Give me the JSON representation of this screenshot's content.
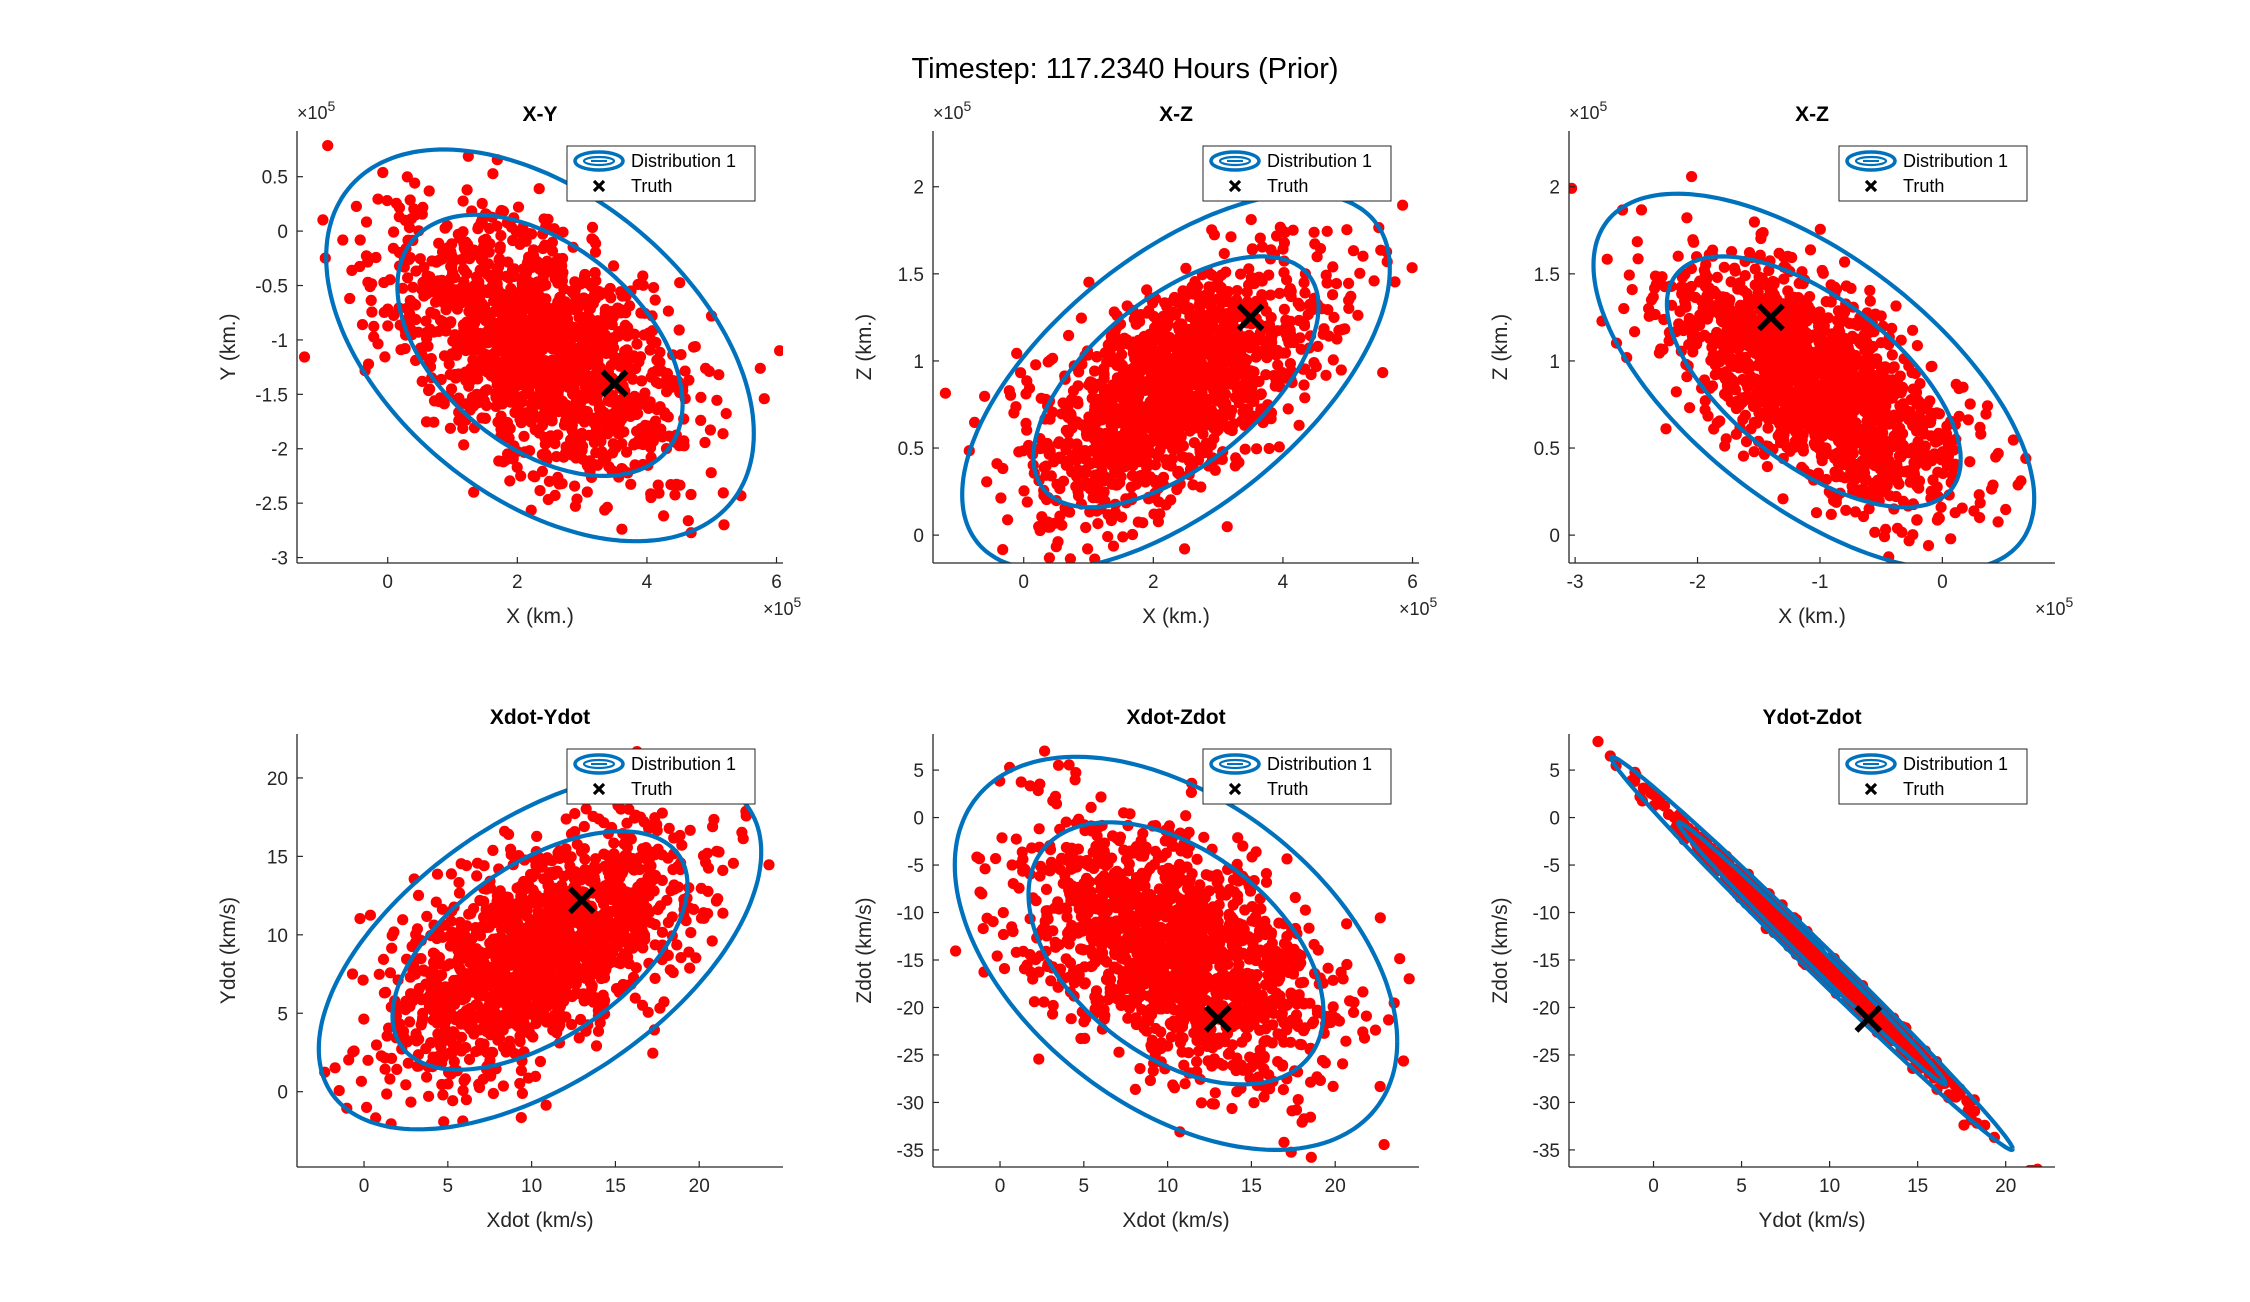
{
  "figure": {
    "title": "Timestep: 117.2340 Hours (Prior)"
  },
  "colors": {
    "ellipse": "#0072BD",
    "samples": "#FF0000",
    "truth": "#000000",
    "axes": "#262626"
  },
  "chart_data": [
    {
      "type": "scatter",
      "title": "X-Y",
      "xlabel": "X (km.)",
      "ylabel": "Y (km.)",
      "x_exponent": "×10^5",
      "y_exponent": "×10^5",
      "xlim": [
        -1.4,
        6.1
      ],
      "ylim": [
        -3.05,
        0.92
      ],
      "xticks": [
        0,
        2,
        4,
        6
      ],
      "xtick_labels": [
        "0",
        "2",
        "4",
        "6"
      ],
      "yticks": [
        -3,
        -2.5,
        -2,
        -1.5,
        -1,
        -0.5,
        0,
        0.5
      ],
      "ytick_labels": [
        "-3",
        "-2.5",
        "-2",
        "-1.5",
        "-1",
        "-0.5",
        "0",
        "0.5"
      ],
      "sample_mean": [
        2.3,
        -1.05
      ],
      "sample_std": [
        1.1,
        0.58
      ],
      "sample_corr": -0.45,
      "sample_count": 1500,
      "truth": [
        3.5,
        -1.4
      ],
      "ellipse": {
        "center": [
          2.35,
          -1.05
        ],
        "sx": 1.1,
        "sy": 0.6,
        "rho": -0.45,
        "sigmas": [
          2,
          3
        ]
      },
      "legend": {
        "location": "top-right",
        "entries": [
          "Distribution 1",
          "Truth"
        ]
      }
    },
    {
      "type": "scatter",
      "title": "X-Z",
      "xlabel": "X (km.)",
      "ylabel": "Z (km.)",
      "x_exponent": "×10^5",
      "y_exponent": "×10^5",
      "xlim": [
        -1.4,
        6.1
      ],
      "ylim": [
        -0.16,
        2.32
      ],
      "xticks": [
        0,
        2,
        4,
        6
      ],
      "xtick_labels": [
        "0",
        "2",
        "4",
        "6"
      ],
      "yticks": [
        0,
        0.5,
        1,
        1.5,
        2
      ],
      "ytick_labels": [
        "0",
        "0.5",
        "1",
        "1.5",
        "2"
      ],
      "sample_mean": [
        2.35,
        0.85
      ],
      "sample_std": [
        1.1,
        0.35
      ],
      "sample_corr": 0.6,
      "sample_count": 1500,
      "truth": [
        3.5,
        1.25
      ],
      "ellipse": {
        "center": [
          2.35,
          0.88
        ],
        "sx": 1.1,
        "sy": 0.36,
        "rho": 0.6,
        "sigmas": [
          2,
          3
        ]
      },
      "legend": {
        "location": "top-right",
        "entries": [
          "Distribution 1",
          "Truth"
        ]
      }
    },
    {
      "type": "scatter",
      "title": "X-Z",
      "xlabel": "X (km.)",
      "ylabel": "Z (km.)",
      "x_exponent": "×10^5",
      "y_exponent": "×10^5",
      "xlim": [
        -3.05,
        0.92
      ],
      "ylim": [
        -0.16,
        2.32
      ],
      "xticks": [
        -3,
        -2,
        -1,
        0
      ],
      "xtick_labels": [
        "-3",
        "-2",
        "-1",
        "0"
      ],
      "yticks": [
        0,
        0.5,
        1,
        1.5,
        2
      ],
      "ytick_labels": [
        "0",
        "0.5",
        "1",
        "1.5",
        "2"
      ],
      "sample_mean": [
        -1.05,
        0.88
      ],
      "sample_std": [
        0.58,
        0.35
      ],
      "sample_corr": -0.62,
      "sample_count": 1500,
      "truth": [
        -1.4,
        1.25
      ],
      "ellipse": {
        "center": [
          -1.05,
          0.88
        ],
        "sx": 0.6,
        "sy": 0.36,
        "rho": -0.62,
        "sigmas": [
          2,
          3
        ]
      },
      "legend": {
        "location": "top-right",
        "entries": [
          "Distribution 1",
          "Truth"
        ]
      }
    },
    {
      "type": "scatter",
      "title": "Xdot-Ydot",
      "xlabel": "Xdot (km/s)",
      "ylabel": "Ydot (km/s)",
      "xlim": [
        -4,
        25
      ],
      "ylim": [
        -4.8,
        22.8
      ],
      "xticks": [
        0,
        5,
        10,
        15,
        20
      ],
      "xtick_labels": [
        "0",
        "5",
        "10",
        "15",
        "20"
      ],
      "yticks": [
        0,
        5,
        10,
        15,
        20
      ],
      "ytick_labels": [
        "0",
        "5",
        "10",
        "15",
        "20"
      ],
      "sample_mean": [
        10.5,
        9.0
      ],
      "sample_std": [
        4.4,
        3.7
      ],
      "sample_corr": 0.55,
      "sample_count": 1500,
      "truth": [
        13.0,
        12.2
      ],
      "ellipse": {
        "center": [
          10.5,
          9.0
        ],
        "sx": 4.4,
        "sy": 3.8,
        "rho": 0.55,
        "sigmas": [
          2,
          3
        ]
      },
      "legend": {
        "location": "top-right",
        "entries": [
          "Distribution 1",
          "Truth"
        ]
      }
    },
    {
      "type": "scatter",
      "title": "Xdot-Zdot",
      "xlabel": "Xdot (km/s)",
      "ylabel": "Zdot (km/s)",
      "xlim": [
        -4,
        25
      ],
      "ylim": [
        -36.8,
        8.8
      ],
      "xticks": [
        0,
        5,
        10,
        15,
        20
      ],
      "xtick_labels": [
        "0",
        "5",
        "10",
        "15",
        "20"
      ],
      "yticks": [
        -35,
        -30,
        -25,
        -20,
        -15,
        -10,
        -5,
        0,
        5
      ],
      "ytick_labels": [
        "-35",
        "-30",
        "-25",
        "-20",
        "-15",
        "-10",
        "-5",
        "0",
        "5"
      ],
      "sample_mean": [
        10.5,
        -14.0
      ],
      "sample_std": [
        4.4,
        6.8
      ],
      "sample_corr": -0.45,
      "sample_count": 1500,
      "truth": [
        13.0,
        -21.2
      ],
      "ellipse": {
        "center": [
          10.5,
          -14.3
        ],
        "sx": 4.4,
        "sy": 6.9,
        "rho": -0.45,
        "sigmas": [
          2,
          3
        ]
      },
      "legend": {
        "location": "top-right",
        "entries": [
          "Distribution 1",
          "Truth"
        ]
      }
    },
    {
      "type": "scatter",
      "title": "Ydot-Zdot",
      "xlabel": "Ydot (km/s)",
      "ylabel": "Zdot (km/s)",
      "xlim": [
        -4.8,
        22.8
      ],
      "ylim": [
        -36.8,
        8.8
      ],
      "xticks": [
        0,
        5,
        10,
        15,
        20
      ],
      "xtick_labels": [
        "0",
        "5",
        "10",
        "15",
        "20"
      ],
      "yticks": [
        -35,
        -30,
        -25,
        -20,
        -15,
        -10,
        -5,
        0,
        5
      ],
      "ytick_labels": [
        "-35",
        "-30",
        "-25",
        "-20",
        "-15",
        "-10",
        "-5",
        "0",
        "5"
      ],
      "sample_mean": [
        9.0,
        -14.3
      ],
      "sample_std": [
        3.8,
        6.9
      ],
      "sample_corr": -0.995,
      "sample_count": 1200,
      "truth": [
        12.2,
        -21.2
      ],
      "ellipse": {
        "center": [
          9.0,
          -14.3
        ],
        "sx": 3.8,
        "sy": 6.9,
        "rho": -0.995,
        "sigmas": [
          2,
          3
        ]
      },
      "legend": {
        "location": "top-right",
        "entries": [
          "Distribution 1",
          "Truth"
        ]
      }
    }
  ]
}
